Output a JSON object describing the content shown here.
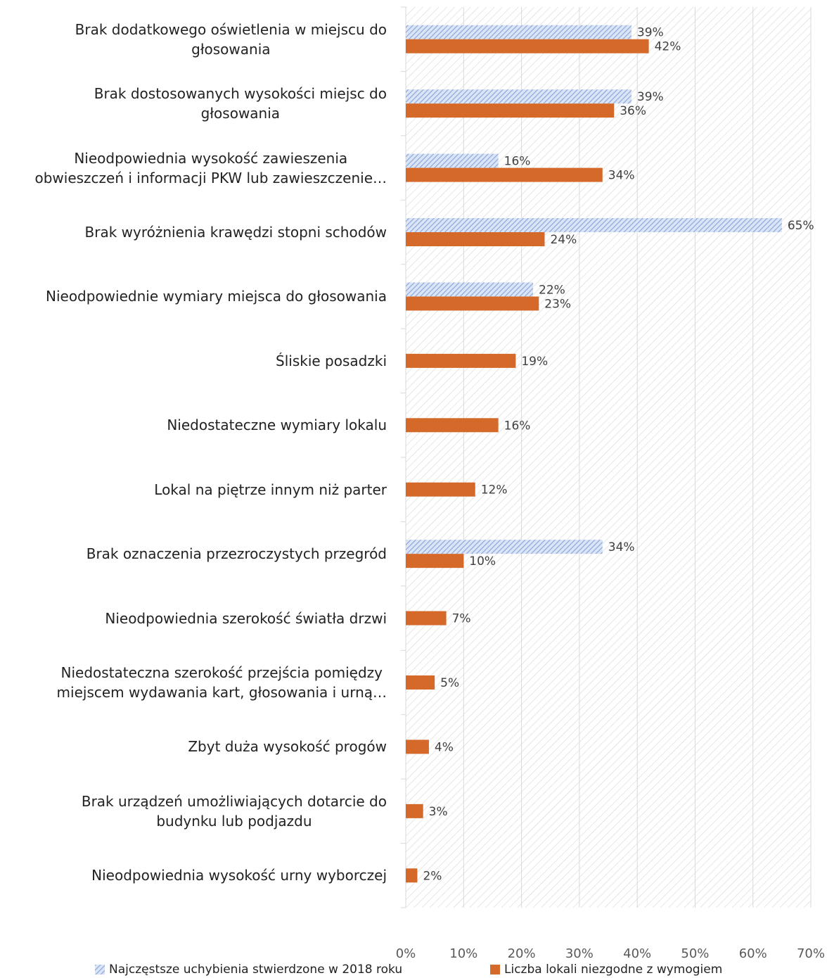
{
  "chart_data": {
    "type": "bar",
    "orientation": "horizontal",
    "categories": [
      "Brak dodatkowego oświetlenia w miejscu do\ngłosowania",
      "Brak dostosowanych wysokości miejsc do\ngłosowania",
      "Nieodpowiednia wysokość zawieszenia\nobwieszczeń i informacji PKW lub zawieszczenie…",
      "Brak wyróżnienia krawędzi stopni schodów",
      "Nieodpowiednie wymiary miejsca do głosowania",
      "Śliskie posadzki",
      "Niedostateczne wymiary lokalu",
      "Lokal na piętrze innym niż parter",
      "Brak oznaczenia przezroczystych przegród",
      "Nieodpowiednia szerokość światła drzwi",
      "Niedostateczna szerokość przejścia pomiędzy\nmiejscem wydawania kart, głosowania i urną…",
      "Zbyt duża wysokość progów",
      "Brak urządzeń umożliwiających dotarcie do\nbudynku lub podjazdu",
      "Nieodpowiednia wysokość urny wyborczej"
    ],
    "series": [
      {
        "name": "Najczęstsze uchybienia stwierdzone w 2018 roku",
        "color": "#9db7e6",
        "pattern": "hatch",
        "values": [
          39,
          39,
          16,
          65,
          22,
          null,
          null,
          null,
          34,
          null,
          null,
          null,
          null,
          null
        ],
        "value_labels": [
          "39%",
          "39%",
          "16%",
          "65%",
          "22%",
          null,
          null,
          null,
          "34%",
          null,
          null,
          null,
          null,
          null
        ]
      },
      {
        "name": "Liczba lokali niezgodne z wymogiem",
        "color": "#d4692a",
        "values": [
          42,
          36,
          34,
          24,
          23,
          19,
          16,
          12,
          10,
          7,
          5,
          4,
          3,
          2
        ],
        "value_labels": [
          "42%",
          "36%",
          "34%",
          "24%",
          "23%",
          "19%",
          "16%",
          "12%",
          "10%",
          "7%",
          "5%",
          "4%",
          "3%",
          "2%"
        ]
      }
    ],
    "xlim": [
      0,
      70
    ],
    "xticks": [
      {
        "value": 0,
        "label": "0%"
      },
      {
        "value": 10,
        "label": "10%"
      },
      {
        "value": 20,
        "label": "20%"
      },
      {
        "value": 30,
        "label": "30%"
      },
      {
        "value": 40,
        "label": "40%"
      },
      {
        "value": 50,
        "label": "50%"
      },
      {
        "value": 60,
        "label": "60%"
      },
      {
        "value": 70,
        "label": "70%"
      }
    ],
    "grid": true,
    "legend": "bottom"
  }
}
